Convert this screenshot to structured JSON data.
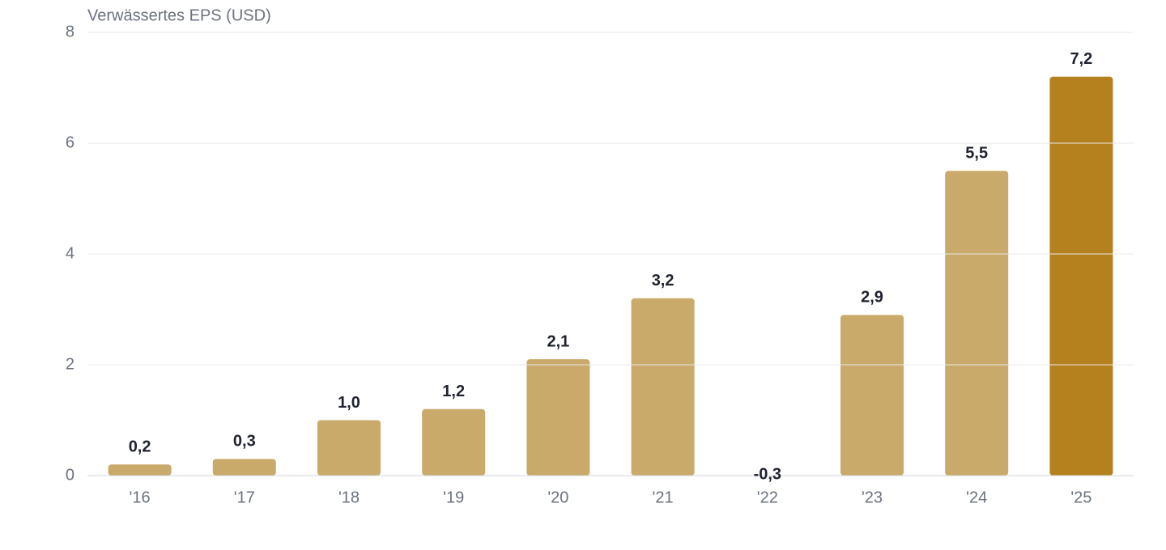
{
  "chart_data": {
    "type": "bar",
    "title": "Verwässertes EPS (USD)",
    "categories": [
      "'16",
      "'17",
      "'18",
      "'19",
      "'20",
      "'21",
      "'22",
      "'23",
      "'24",
      "'25"
    ],
    "values": [
      0.2,
      0.3,
      1.0,
      1.2,
      2.1,
      3.2,
      -0.3,
      2.9,
      5.5,
      7.2
    ],
    "value_labels": [
      "0,2",
      "0,3",
      "1,0",
      "1,2",
      "2,1",
      "3,2",
      "-0,3",
      "2,9",
      "5,5",
      "7,2"
    ],
    "colors": [
      "#c9aa6a",
      "#c9aa6a",
      "#c9aa6a",
      "#c9aa6a",
      "#c9aa6a",
      "#c9aa6a",
      "#c9aa6a",
      "#c9aa6a",
      "#c9aa6a",
      "#b5811e"
    ],
    "ylim": [
      0,
      8
    ],
    "yticks": [
      0,
      2,
      4,
      6,
      8
    ],
    "grid": true
  }
}
